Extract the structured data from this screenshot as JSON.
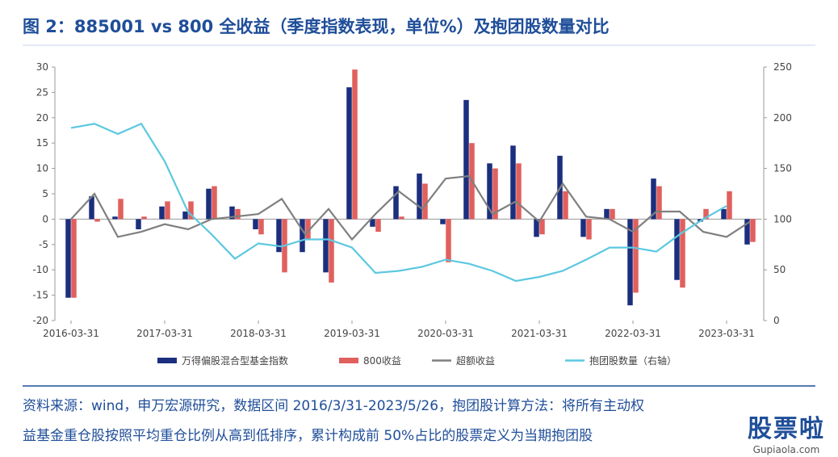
{
  "chart_data": {
    "type": "bar",
    "title": "图 2：885001 vs 800 全收益（季度指数表现，单位%）及抱团股数量对比",
    "categories": [
      "2016-03-31",
      null,
      null,
      null,
      "2017-03-31",
      null,
      null,
      null,
      "2018-03-31",
      null,
      null,
      null,
      "2019-03-31",
      null,
      null,
      null,
      "2020-03-31",
      null,
      null,
      null,
      "2021-03-31",
      null,
      null,
      null,
      "2022-03-31",
      null,
      null,
      null,
      "2023-03-31",
      null
    ],
    "series": [
      {
        "name": "万得偏股混合型基金指数",
        "type": "bar",
        "color": "#1b2f7e",
        "values": [
          -15.5,
          4.5,
          0.5,
          -2,
          2.5,
          1.5,
          6,
          2.5,
          -2,
          -6.5,
          -6.5,
          -10.5,
          26,
          -1.5,
          6.5,
          9,
          -1,
          23.5,
          11,
          14.5,
          -3.5,
          12.5,
          -3.5,
          2,
          -17,
          8,
          -12,
          -0.5,
          2,
          -5
        ]
      },
      {
        "name": "800收益",
        "type": "bar",
        "color": "#e0605e",
        "values": [
          -15.5,
          -0.5,
          4,
          0.5,
          3.5,
          3.5,
          6.5,
          2,
          -3,
          -10.5,
          -4,
          -12.5,
          29.5,
          -2.5,
          0.5,
          7,
          -8.5,
          15,
          10,
          11,
          -3,
          5.5,
          -4,
          2,
          -14.5,
          6.5,
          -13.5,
          2,
          5.5,
          -4.5
        ]
      },
      {
        "name": "超额收益",
        "type": "line",
        "color": "#7f7f7f",
        "values": [
          0,
          5,
          -3.5,
          -2.5,
          -1,
          -2,
          0,
          0.5,
          1,
          4,
          -3,
          2,
          -4,
          1,
          5.5,
          2,
          8,
          8.5,
          1,
          3.5,
          -0.5,
          7,
          0.5,
          0,
          -2.5,
          1.5,
          1.5,
          -2.5,
          -3.5,
          -0.5
        ]
      },
      {
        "name": "抱团股数量（右轴）",
        "type": "line",
        "axis": "y2",
        "color": "#5cc8e0",
        "values": [
          190,
          194,
          184,
          194,
          157,
          107,
          85,
          61,
          76,
          73,
          80,
          80,
          72,
          47,
          49,
          53,
          60,
          56,
          49,
          39,
          43,
          49,
          60,
          72,
          72,
          68,
          85,
          100,
          113,
          null
        ]
      }
    ],
    "ylim": [
      -20,
      30
    ],
    "yticks": [
      -20,
      -15,
      -10,
      -5,
      0,
      5,
      10,
      15,
      20,
      25,
      30
    ],
    "y2lim": [
      0,
      250
    ],
    "y2ticks": [
      0,
      50,
      100,
      150,
      200,
      250
    ]
  },
  "source": {
    "lines": [
      "资料来源：wind，申万宏源研究，数据区间 2016/3/31-2023/5/26，抱团股计算方法：将所有主动权",
      "益基金重仓股按照平均重仓比例从高到低排序，累计构成前 50%占比的股票定义为当期抱团股"
    ]
  },
  "watermark": {
    "logo": "股票啦",
    "site": "Gupiaola.com"
  }
}
